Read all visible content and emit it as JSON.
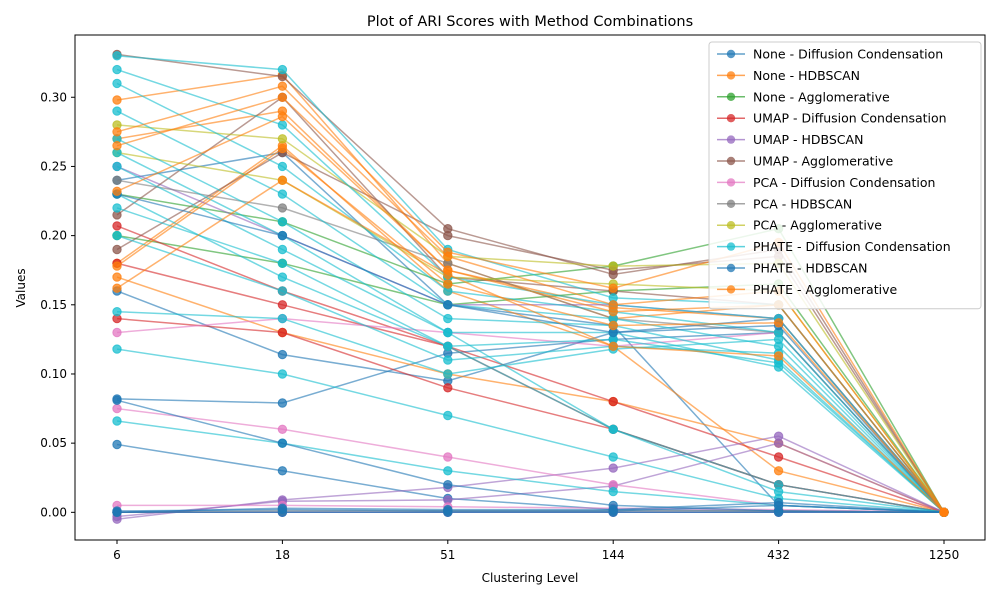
{
  "chart_data": {
    "type": "line",
    "title": "Plot of ARI Scores with Method Combinations",
    "xlabel": "Clustering Level",
    "ylabel": "Values",
    "x_categories": [
      "6",
      "18",
      "51",
      "144",
      "432",
      "1250"
    ],
    "y_ticks": [
      "0.00",
      "0.05",
      "0.10",
      "0.15",
      "0.20",
      "0.25",
      "0.30"
    ],
    "ylim": [
      -0.02,
      0.345
    ],
    "grid": false,
    "legend_position": "top-right",
    "series": [
      {
        "name": "None - Diffusion Condensation",
        "color": "#1f77b4",
        "lines": [
          [
            0.0,
            0.0,
            0.0,
            0.0,
            0.0,
            0.0
          ],
          [
            0.082,
            0.079,
            0.115,
            0.125,
            0.13,
            0.0
          ],
          [
            0.16,
            0.114,
            0.095,
            0.13,
            0.14,
            0.0
          ],
          [
            0.24,
            0.26,
            0.15,
            0.135,
            0.005,
            0.0
          ],
          [
            0.049,
            0.03,
            0.01,
            0.002,
            0.001,
            0.0
          ]
        ]
      },
      {
        "name": "None - HDBSCAN",
        "color": "#ff7f0e",
        "lines": [
          [
            0.298,
            0.316,
            0.18,
            0.14,
            0.15,
            0.0
          ],
          [
            0.27,
            0.29,
            0.175,
            0.148,
            0.14,
            0.0
          ],
          [
            0.18,
            0.265,
            0.16,
            0.12,
            0.03,
            0.0
          ],
          [
            0.17,
            0.13,
            0.1,
            0.08,
            0.05,
            0.0
          ]
        ]
      },
      {
        "name": "None - Agglomerative",
        "color": "#2ca02c",
        "lines": [
          [
            0.23,
            0.21,
            0.165,
            0.178,
            0.205,
            0.0
          ],
          [
            0.2,
            0.18,
            0.15,
            0.16,
            0.165,
            0.0
          ]
        ]
      },
      {
        "name": "UMAP - Diffusion Condensation",
        "color": "#d62728",
        "lines": [
          [
            0.207,
            0.16,
            0.12,
            0.06,
            0.02,
            0.0
          ],
          [
            0.14,
            0.13,
            0.09,
            0.06,
            0.02,
            0.0
          ],
          [
            0.18,
            0.15,
            0.12,
            0.08,
            0.04,
            0.0
          ]
        ]
      },
      {
        "name": "UMAP - HDBSCAN",
        "color": "#9467bd",
        "lines": [
          [
            -0.005,
            0.009,
            0.018,
            0.032,
            0.055,
            0.0
          ],
          [
            -0.003,
            0.008,
            0.009,
            0.019,
            0.05,
            0.0
          ],
          [
            0.25,
            0.2,
            0.15,
            0.15,
            0.14,
            0.0
          ],
          [
            0.0,
            0.0,
            0.0,
            0.0,
            0.0,
            0.0
          ]
        ]
      },
      {
        "name": "UMAP - Agglomerative",
        "color": "#8c564b",
        "lines": [
          [
            0.331,
            0.315,
            0.205,
            0.172,
            0.19,
            0.0
          ],
          [
            0.19,
            0.26,
            0.2,
            0.175,
            0.185,
            0.0
          ],
          [
            0.215,
            0.3,
            0.17,
            0.16,
            0.15,
            0.0
          ]
        ]
      },
      {
        "name": "PCA - Diffusion Condensation",
        "color": "#e377c2",
        "lines": [
          [
            0.13,
            0.14,
            0.13,
            0.12,
            0.13,
            0.0
          ],
          [
            0.075,
            0.06,
            0.04,
            0.02,
            0.005,
            0.0
          ],
          [
            0.005,
            0.005,
            0.004,
            0.003,
            0.002,
            0.0
          ]
        ]
      },
      {
        "name": "PCA - HDBSCAN",
        "color": "#7f7f7f",
        "lines": [
          [
            0.24,
            0.22,
            0.18,
            0.14,
            0.13,
            0.0
          ],
          [
            0.0,
            0.001,
            0.001,
            0.001,
            0.001,
            0.0
          ]
        ]
      },
      {
        "name": "PCA - Agglomerative",
        "color": "#bcbd22",
        "lines": [
          [
            0.28,
            0.27,
            0.185,
            0.178,
            0.18,
            0.0
          ],
          [
            0.26,
            0.24,
            0.17,
            0.165,
            0.16,
            0.0
          ]
        ]
      },
      {
        "name": "PHATE - Diffusion Condensation",
        "color": "#17becf",
        "lines": [
          [
            0.33,
            0.32,
            0.19,
            0.155,
            0.15,
            0.0
          ],
          [
            0.32,
            0.28,
            0.17,
            0.15,
            0.14,
            0.0
          ],
          [
            0.31,
            0.25,
            0.16,
            0.145,
            0.13,
            0.0
          ],
          [
            0.29,
            0.23,
            0.15,
            0.14,
            0.12,
            0.0
          ],
          [
            0.27,
            0.21,
            0.14,
            0.135,
            0.11,
            0.0
          ],
          [
            0.25,
            0.19,
            0.13,
            0.13,
            0.105,
            0.0
          ],
          [
            0.23,
            0.17,
            0.12,
            0.125,
            0.108,
            0.0
          ],
          [
            0.2,
            0.16,
            0.11,
            0.12,
            0.115,
            0.0
          ],
          [
            0.145,
            0.14,
            0.1,
            0.118,
            0.125,
            0.0
          ],
          [
            0.118,
            0.1,
            0.07,
            0.04,
            0.01,
            0.0
          ],
          [
            0.066,
            0.05,
            0.03,
            0.015,
            0.005,
            0.0
          ],
          [
            0.26,
            0.2,
            0.13,
            0.06,
            0.02,
            0.0
          ],
          [
            0.22,
            0.18,
            0.12,
            0.06,
            0.015,
            0.0
          ]
        ]
      },
      {
        "name": "PHATE - HDBSCAN",
        "color": "#1f77b4",
        "lines": [
          [
            0.0,
            0.0,
            0.0,
            0.0,
            0.0,
            0.0
          ],
          [
            0.001,
            0.002,
            0.001,
            0.001,
            0.005,
            0.0
          ],
          [
            0.0,
            0.003,
            0.002,
            0.002,
            0.007,
            0.0
          ],
          [
            0.081,
            0.05,
            0.02,
            0.005,
            0.001,
            0.0
          ],
          [
            0.23,
            0.2,
            0.15,
            0.13,
            0.135,
            0.0
          ]
        ]
      },
      {
        "name": "PHATE - Agglomerative",
        "color": "#ff7f0e",
        "lines": [
          [
            0.275,
            0.308,
            0.188,
            0.162,
            0.195,
            0.0
          ],
          [
            0.265,
            0.3,
            0.185,
            0.15,
            0.16,
            0.0
          ],
          [
            0.232,
            0.286,
            0.175,
            0.145,
            0.15,
            0.0
          ],
          [
            0.178,
            0.263,
            0.165,
            0.135,
            0.137,
            0.0
          ],
          [
            0.162,
            0.24,
            0.172,
            0.12,
            0.113,
            0.0
          ]
        ]
      }
    ]
  }
}
